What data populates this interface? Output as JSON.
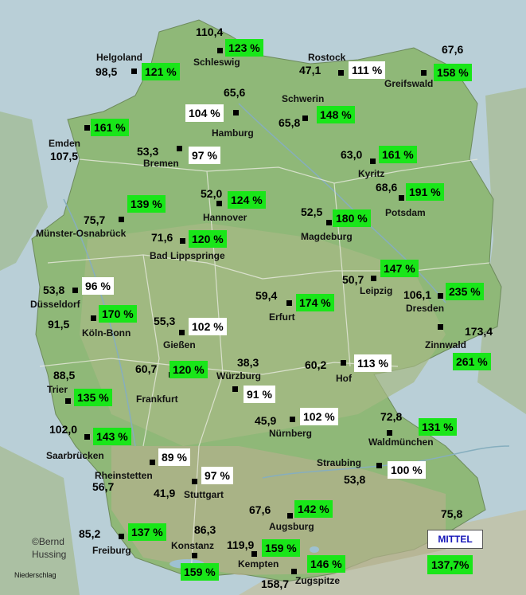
{
  "map": {
    "credit_line1": "©Bernd",
    "credit_line2": "Hussing",
    "variable_label": "Niederschlag",
    "average_label": "MITTEL",
    "average_value": "137,7%",
    "colors": {
      "above": "#19e619",
      "normal": "#ffffff",
      "land": "#8fb878",
      "sea": "#b9cfd7",
      "mountains": "#b7b08f"
    },
    "stations": [
      {
        "id": "schleswig",
        "name": "Schleswig",
        "value": "110,4",
        "percent": "123 %",
        "status": "above"
      },
      {
        "id": "helgoland",
        "name": "Helgoland",
        "value": "98,5",
        "percent": "121 %",
        "status": "above"
      },
      {
        "id": "rostock",
        "name": "Rostock",
        "value": "47,1",
        "percent": "111 %",
        "status": "normal"
      },
      {
        "id": "greifswald",
        "name": "Greifswald",
        "value": "67,6",
        "percent": "158 %",
        "status": "above"
      },
      {
        "id": "hamburg",
        "name": "Hamburg",
        "value": "65,6",
        "percent": "104 %",
        "status": "normal"
      },
      {
        "id": "schwerin",
        "name": "Schwerin",
        "value": "65,8",
        "percent": "148 %",
        "status": "above"
      },
      {
        "id": "emden",
        "name": "Emden",
        "value": "107,5",
        "percent": "161 %",
        "status": "above"
      },
      {
        "id": "bremen",
        "name": "Bremen",
        "value": "53,3",
        "percent": "97 %",
        "status": "normal"
      },
      {
        "id": "kyritz",
        "name": "Kyritz",
        "value": "63,0",
        "percent": "161 %",
        "status": "above"
      },
      {
        "id": "potsdam",
        "name": "Potsdam",
        "value": "68,6",
        "percent": "191 %",
        "status": "above"
      },
      {
        "id": "hannover",
        "name": "Hannover",
        "value": "52,0",
        "percent": "124 %",
        "status": "above"
      },
      {
        "id": "muenster",
        "name": "Münster-Osnabrück",
        "value": "75,7",
        "percent": "139 %",
        "status": "above"
      },
      {
        "id": "magdeburg",
        "name": "Magdeburg",
        "value": "52,5",
        "percent": "180 %",
        "status": "above"
      },
      {
        "id": "lippspringe",
        "name": "Bad Lippspringe",
        "value": "71,6",
        "percent": "120 %",
        "status": "above"
      },
      {
        "id": "leipzig",
        "name": "Leipzig",
        "value": "50,7",
        "percent": "147 %",
        "status": "above"
      },
      {
        "id": "duesseldorf",
        "name": "Düsseldorf",
        "value": "53,8",
        "percent": "96 %",
        "status": "normal"
      },
      {
        "id": "dresden",
        "name": "Dresden",
        "value": "106,1",
        "percent": "235 %",
        "status": "above"
      },
      {
        "id": "erfurt",
        "name": "Erfurt",
        "value": "59,4",
        "percent": "174 %",
        "status": "above"
      },
      {
        "id": "koeln",
        "name": "Köln-Bonn",
        "value": "91,5",
        "percent": "170 %",
        "status": "above"
      },
      {
        "id": "giessen",
        "name": "Gießen",
        "value": "55,3",
        "percent": "102 %",
        "status": "normal"
      },
      {
        "id": "zinnwald",
        "name": "Zinnwald",
        "value": "173,4",
        "percent": "261 %",
        "status": "above"
      },
      {
        "id": "hof",
        "name": "Hof",
        "value": "60,2",
        "percent": "113 %",
        "status": "normal"
      },
      {
        "id": "wuerzburg",
        "name": "Würzburg",
        "value": "38,3",
        "percent": "91 %",
        "status": "normal"
      },
      {
        "id": "trier",
        "name": "Trier",
        "value": "88,5",
        "percent": "135 %",
        "status": "above"
      },
      {
        "id": "frankfurt",
        "name": "Frankfurt",
        "value": "60,7",
        "percent": "120 %",
        "status": "above"
      },
      {
        "id": "nuernberg",
        "name": "Nürnberg",
        "value": "45,9",
        "percent": "102 %",
        "status": "normal"
      },
      {
        "id": "waldmuenchen",
        "name": "Waldmünchen",
        "value": "72,8",
        "percent": "131 %",
        "status": "above"
      },
      {
        "id": "saarbruecken",
        "name": "Saarbrücken",
        "value": "102,0",
        "percent": "143 %",
        "status": "above"
      },
      {
        "id": "rheinstetten",
        "name": "Rheinstetten",
        "value": "56,7",
        "percent": "89 %",
        "status": "normal"
      },
      {
        "id": "straubing",
        "name": "Straubing",
        "value": "53,8",
        "percent": "100 %",
        "status": "normal"
      },
      {
        "id": "stuttgart",
        "name": "Stuttgart",
        "value": "41,9",
        "percent": "97 %",
        "status": "normal"
      },
      {
        "id": "augsburg",
        "name": "Augsburg",
        "value": "67,6",
        "percent": "142 %",
        "status": "above"
      },
      {
        "id": "freiburg",
        "name": "Freiburg",
        "value": "85,2",
        "percent": "137 %",
        "status": "above"
      },
      {
        "id": "konstanz",
        "name": "Konstanz",
        "value": "86,3",
        "percent": "159 %",
        "status": "above"
      },
      {
        "id": "kempten",
        "name": "Kempten",
        "value": "119,9",
        "percent": "159 %",
        "status": "above"
      },
      {
        "id": "zugspitze",
        "name": "Zugspitze",
        "value": "158,7",
        "percent": "146 %",
        "status": "above"
      },
      {
        "id": "passau",
        "name": "",
        "value": "75,8",
        "percent": "",
        "status": "none"
      }
    ]
  }
}
